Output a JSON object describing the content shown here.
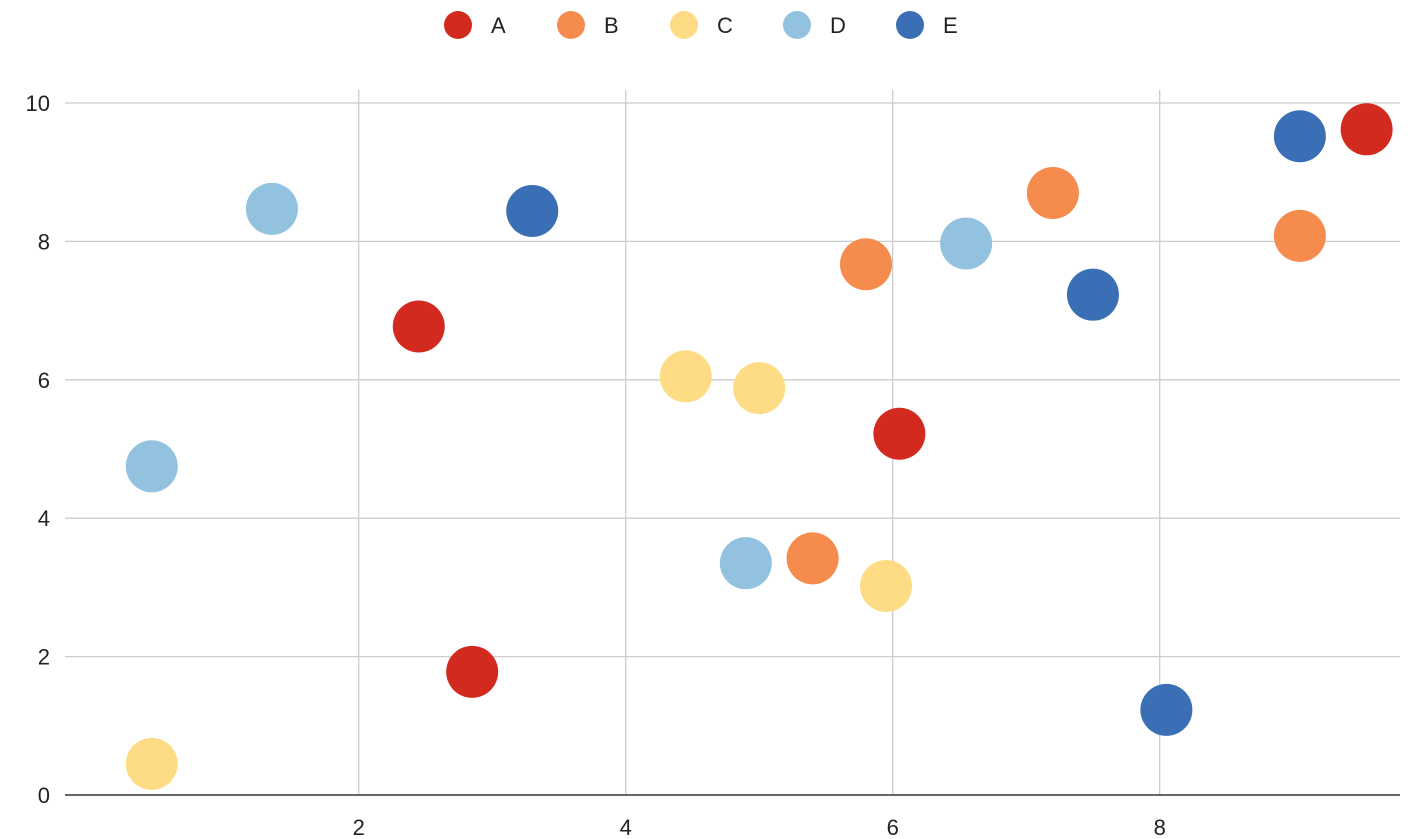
{
  "chart_data": {
    "type": "scatter",
    "xlim": [
      -0.2,
      9.8
    ],
    "ylim": [
      0,
      10
    ],
    "x_ticks": [
      2,
      4,
      6,
      8
    ],
    "y_ticks": [
      0,
      2,
      4,
      6,
      8,
      10
    ],
    "grid": true,
    "legend_position": "top",
    "series": [
      {
        "name": "A",
        "color": "#d32a20",
        "points": [
          [
            2.45,
            6.77
          ],
          [
            2.85,
            1.78
          ],
          [
            6.05,
            5.22
          ],
          [
            9.55,
            9.62
          ]
        ]
      },
      {
        "name": "B",
        "color": "#f58b4c",
        "points": [
          [
            5.4,
            3.42
          ],
          [
            5.8,
            7.67
          ],
          [
            7.2,
            8.7
          ],
          [
            9.05,
            8.08
          ]
        ]
      },
      {
        "name": "C",
        "color": "#fedc85",
        "points": [
          [
            0.45,
            0.45
          ],
          [
            4.45,
            6.05
          ],
          [
            5.0,
            5.88
          ],
          [
            5.95,
            3.02
          ]
        ]
      },
      {
        "name": "D",
        "color": "#93c1e0",
        "points": [
          [
            0.45,
            4.75
          ],
          [
            1.35,
            8.47
          ],
          [
            4.9,
            3.35
          ],
          [
            6.55,
            7.97
          ]
        ]
      },
      {
        "name": "E",
        "color": "#3a6fb5",
        "points": [
          [
            3.3,
            8.44
          ],
          [
            7.5,
            7.23
          ],
          [
            8.05,
            1.23
          ],
          [
            9.05,
            9.52
          ]
        ]
      }
    ]
  }
}
